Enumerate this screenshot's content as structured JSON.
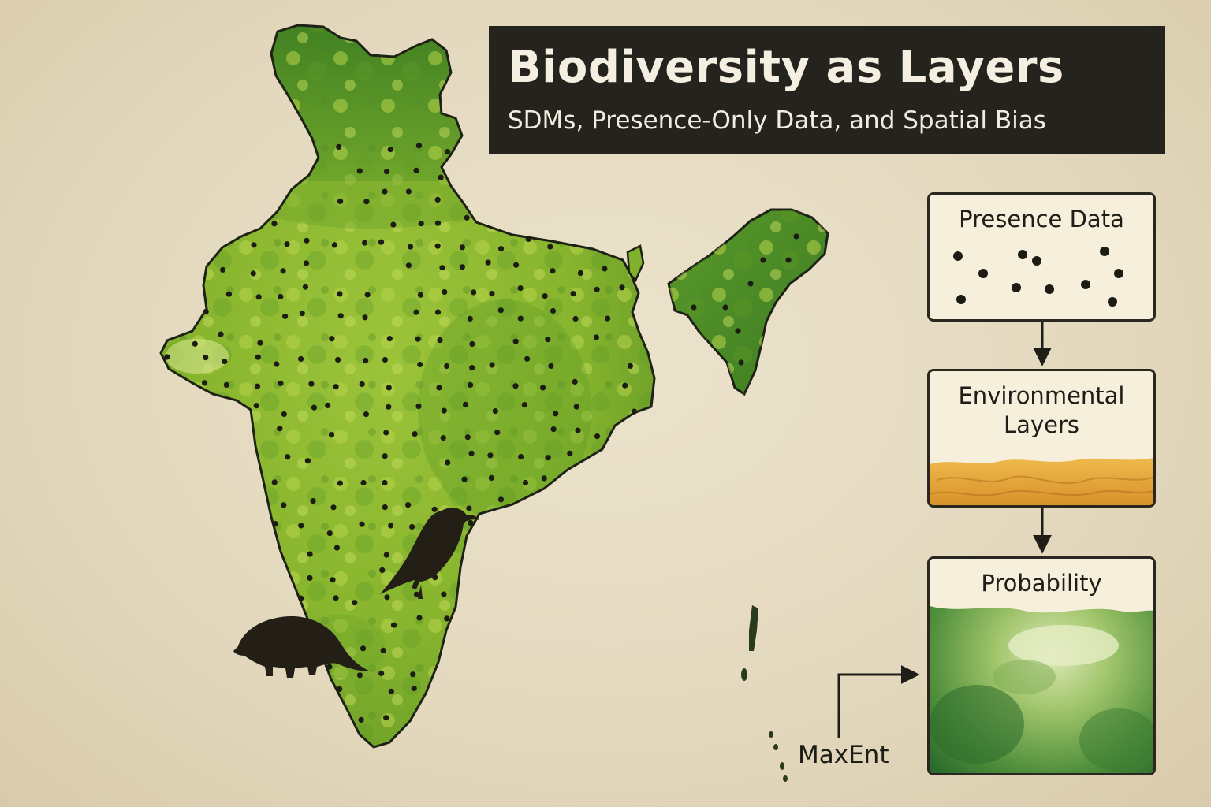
{
  "title": {
    "main": "Biodiversity as Layers",
    "subtitle": "SDMs, Presence-Only Data, and Spatial Bias"
  },
  "pipeline": {
    "presence": {
      "label": "Presence Data"
    },
    "environmental": {
      "label_line1": "Environmental",
      "label_line2": "Layers"
    },
    "probability": {
      "label": "Probability"
    },
    "method_label": "MaxEnt"
  },
  "map": {
    "region": "India",
    "land_color": "#8cb82c",
    "dark_color": "#3f7a1f",
    "point_color": "#1c1c14"
  },
  "icons": [
    "bird-silhouette-icon",
    "pangolin-silhouette-icon"
  ],
  "colors": {
    "background": "#e6dcc3",
    "title_bg": "#24231d",
    "title_text": "#f4efe1",
    "panel_bg": "#f6efdc",
    "panel_border": "#2a2721",
    "environmental_layer": "#e0a035",
    "probability_dark": "#2f7a2c",
    "probability_light": "#d8e6b0"
  }
}
